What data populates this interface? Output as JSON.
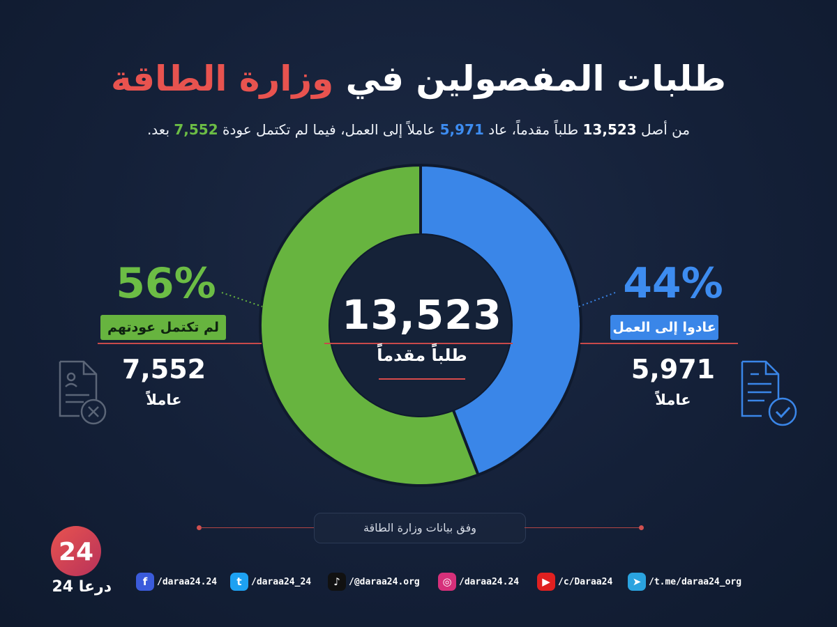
{
  "title": {
    "main": "طلبات المفصولين في",
    "accent": "وزارة الطاقة"
  },
  "subtitle": {
    "p1": "من أصل ",
    "total": "13,523",
    "p2": " طلباً مقدماً، عاد ",
    "returned": "5,971",
    "p3": " عاملاً إلى العمل، فيما لم تكتمل عودة ",
    "pending": "7,552",
    "p4": " بعد."
  },
  "center": {
    "total": "13,523",
    "label": "طلباً مقدماً"
  },
  "left": {
    "percent": "56%",
    "tag": "لم تكتمل عودتهم",
    "count": "7,552",
    "unit": "عاملاً"
  },
  "right": {
    "percent": "44%",
    "tag": "عادوا إلى العمل",
    "count": "5,971",
    "unit": "عاملاً"
  },
  "source": "وفق بيانات وزارة الطاقة",
  "logo": {
    "numeral": "24",
    "text": "درعا 24"
  },
  "social": [
    {
      "icon": "facebook-icon",
      "glyph": "f",
      "color": "#3b5bdb",
      "handle": "/daraa24.24"
    },
    {
      "icon": "twitter-icon",
      "glyph": "t",
      "color": "#1da1f2",
      "handle": "/daraa24_24"
    },
    {
      "icon": "tiktok-icon",
      "glyph": "♪",
      "color": "#111111",
      "handle": "/@daraa24.org"
    },
    {
      "icon": "instagram-icon",
      "glyph": "◎",
      "color": "#d6307a",
      "handle": "/daraa24.24"
    },
    {
      "icon": "youtube-icon",
      "glyph": "▶",
      "color": "#e02020",
      "handle": "/c/Daraa24"
    },
    {
      "icon": "telegram-icon",
      "glyph": "➤",
      "color": "#2aa3df",
      "handle": "/t.me/daraa24_org"
    }
  ],
  "colors": {
    "returned": "#3a86e8",
    "pending": "#67b43f",
    "accent": "#e8534f",
    "background": "#142038"
  },
  "chart_data": {
    "type": "pie",
    "title": "طلبات المفصولين في وزارة الطاقة",
    "total": 13523,
    "categories": [
      "عادوا إلى العمل",
      "لم تكتمل عودتهم"
    ],
    "values": [
      5971,
      7552
    ],
    "percentages": [
      44,
      56
    ],
    "colors": [
      "#3a86e8",
      "#67b43f"
    ],
    "donut": true
  }
}
